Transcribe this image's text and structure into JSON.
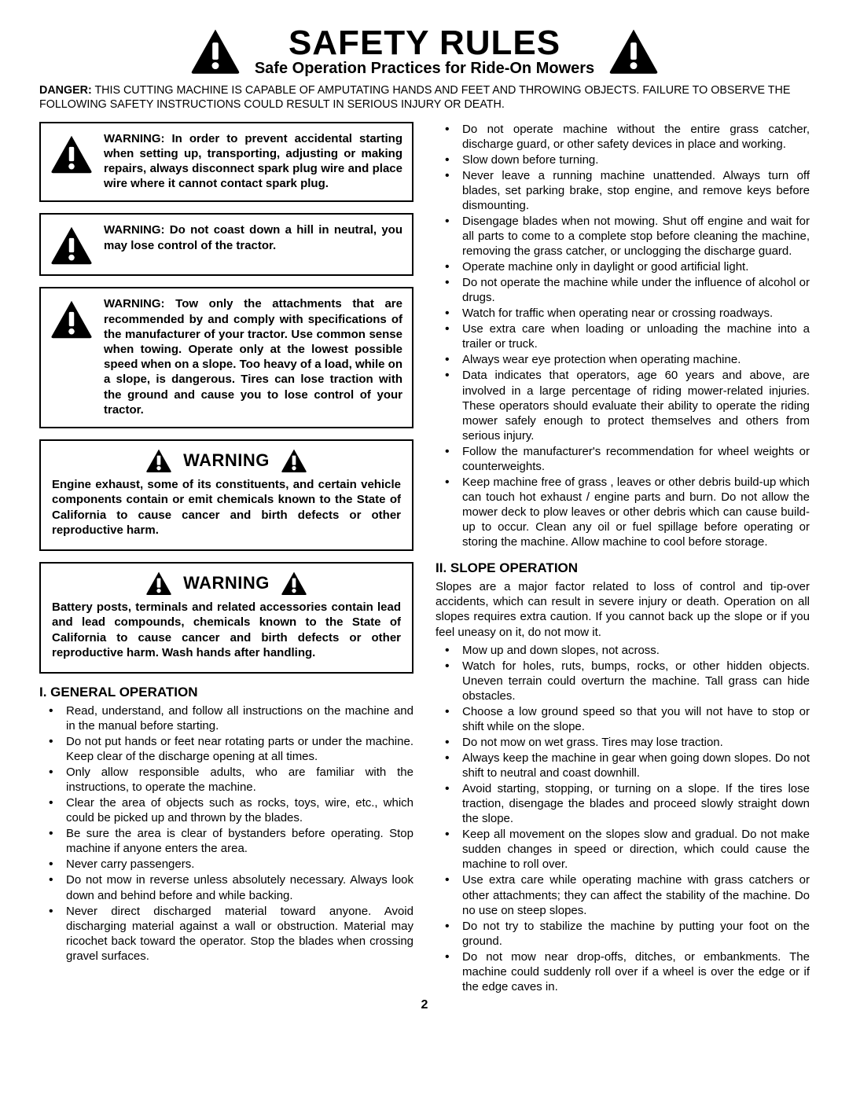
{
  "title": "SAFETY RULES",
  "subtitle": "Safe Operation Practices for Ride-On Mowers",
  "danger_label": "DANGER:",
  "danger_text": "THIS CUTTING MACHINE IS CAPABLE OF AMPUTATING HANDS AND FEET AND THROWING OBJECTS.  FAILURE TO OBSERVE THE FOLLOWING SAFETY INSTRUCTIONS COULD RESULT IN SERIOUS INJURY OR DEATH.",
  "warn1_lead": "WARNING:",
  "warn1_body": "  In order to prevent acci­dental starting when setting up, trans­porting, adjusting or making repairs, always disconnect spark plug wire and place wire where it cannot contact spark plug.",
  "warn2_lead": "WARNING:",
  "warn2_body": "  Do not coast down a hill in neutral, you may lose control of the tractor.",
  "warn3_lead": "WARNING:",
  "warn3_body": "  Tow only the attachments that are recommended by and comply with specifications of the manufacturer of your tractor. Use common sense when towing. Operate only at the low­est possible speed when on a slope. Too heavy of a load, while on a slope, is dangerous.  Tires can lose traction with the ground and cause you to lose control of your tractor.",
  "ca_warning_label": "WARNING",
  "ca1_text": "Engine exhaust, some of its constituents, and cer­tain vehicle components contain or emit chemicals known to the State of California to cause cancer and birth defects or other reproductive harm.",
  "ca2_text": "Battery posts, terminals and related accessories contain lead and lead compounds, chemicals known to the State of California to cause cancer and birth defects or other reproductive harm. Wash hands after handling.",
  "sec1_title": "I. GENERAL OPERATION",
  "sec1_items": [
    "Read, understand, and follow all instructions on the machine and in the manual before starting.",
    "Do not put hands or feet near rotating parts or under the machine. Keep clear of the discharge opening at all times.",
    "Only allow responsible adults, who are familiar with the instructions, to operate the machine.",
    "Clear the area of objects such as  rocks, toys, wire, etc., which could be picked up and thrown by the blades.",
    "Be sure the area is clear of bystanders before operat­ing.  Stop machine if anyone enters the area.",
    "Never carry passengers.",
    "Do not mow in reverse unless absolutely necessary. Always look down and behind before and while back­ing.",
    "Never direct discharged material toward anyone. Avoid discharging material against a wall or obstruction. Ma­terial may ricochet back toward the operator. Stop the blades when crossing gravel surfaces.",
    "Do not operate machine without the entire grass catcher, discharge guard, or other safety devices in place and working.",
    "Slow down before turning.",
    "Never leave a running machine unattended.  Always turn off blades, set parking brake, stop engine, and remove keys before dismounting.",
    "Disengage blades when not mowing. Shut off engine and wait for all parts to come to a complete stop before cleaning the machine, removing the grass catcher, or unclogging the discharge guard.",
    "Operate machine only in daylight or good artificial light.",
    "Do not operate the machine while under the influence of alcohol or drugs.",
    "Watch for traffic when operating near or crossing road­ways.",
    "Use extra care when loading or unloading the machine into a trailer or truck.",
    "Always wear eye protection when operating ma­chine.",
    "Data indicates that operators, age 60 years and above, are involved in a large percentage of riding mower-re­lated injuries.  These operators should evaluate their ability to operate the riding mower safely enough to protect themselves and others from serious injury.",
    "Follow the manufacturer's recommendation for wheel weights or counterweights.",
    "Keep machine free of grass , leaves or other debris build-up which can touch hot exhaust / engine parts and burn. Do not allow the mower deck to plow leaves or other debris which can cause build-up to occur. Clean any oil or fuel spillage before operating or storing the machine. Allow machine to cool before storage."
  ],
  "sec2_title": "II. SLOPE OPERATION",
  "sec2_intro": "Slopes are a major factor related to loss of control and tip-over accidents, which can result in severe injury or death.  Operation on all slopes requires extra caution.  If you cannot back up the slope or if you feel uneasy on it, do not mow it.",
  "sec2_items": [
    "Mow up and down slopes, not across.",
    "Watch for holes, ruts, bumps, rocks, or other hidden objects.  Uneven terrain could overturn the machine. Tall grass can hide obstacles.",
    "Choose a low ground speed so that you will not have to stop or shift while on the slope.",
    "Do not mow on wet grass. Tires may lose traction.",
    "Always keep the machine in gear when going down slopes. Do not shift to neutral and coast downhill.",
    "Avoid starting, stopping, or turning on a slope.  If the tires lose traction,  disengage the blades and proceed slowly straight down the slope.",
    "Keep all movement on the slopes slow and gradual.  Do not make sudden changes in speed or direction, which could cause the machine to roll over.",
    "Use extra care while operating machine with grass catchers or other attachments; they can affect the stability of the machine. Do no use on steep slopes.",
    "Do not  try to stabilize the machine by putting your foot on the ground.",
    "Do not mow near drop-offs, ditches, or embankments. The machine could suddenly roll over if a wheel is over the edge or if the edge caves in."
  ],
  "page_number": "2",
  "icon": {
    "fill": "#000000",
    "bang": "#ffffff"
  }
}
